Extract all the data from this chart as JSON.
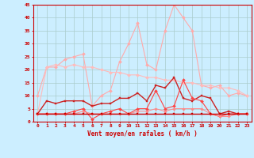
{
  "x": [
    0,
    1,
    2,
    3,
    4,
    5,
    6,
    7,
    8,
    9,
    10,
    11,
    12,
    13,
    14,
    15,
    16,
    17,
    18,
    19,
    20,
    21,
    22,
    23
  ],
  "series": [
    {
      "y": [
        10,
        21,
        21,
        24,
        25,
        26,
        6,
        10,
        12,
        23,
        30,
        38,
        22,
        20,
        35,
        45,
        40,
        35,
        14,
        13,
        14,
        10,
        11,
        10
      ],
      "color": "#ffaaaa",
      "marker": "D",
      "markersize": 2.0,
      "linewidth": 0.8
    },
    {
      "y": [
        3,
        21,
        22,
        21,
        22,
        21,
        21,
        20,
        19,
        19,
        18,
        18,
        17,
        17,
        16,
        16,
        15,
        15,
        14,
        14,
        13,
        13,
        12,
        10
      ],
      "color": "#ffbbbb",
      "marker": "D",
      "markersize": 2.0,
      "linewidth": 0.8
    },
    {
      "y": [
        3,
        8,
        7,
        8,
        8,
        8,
        6,
        7,
        7,
        9,
        9,
        11,
        8,
        14,
        13,
        17,
        9,
        8,
        10,
        9,
        3,
        4,
        3,
        3
      ],
      "color": "#cc2222",
      "marker": "s",
      "markersize": 2.0,
      "linewidth": 1.0
    },
    {
      "y": [
        3,
        3,
        3,
        3,
        4,
        5,
        1,
        3,
        4,
        5,
        3,
        5,
        5,
        12,
        5,
        6,
        16,
        9,
        8,
        3,
        2,
        3,
        3,
        3
      ],
      "color": "#ff4444",
      "marker": "D",
      "markersize": 2.0,
      "linewidth": 0.8
    },
    {
      "y": [
        3,
        3,
        3,
        3,
        3,
        4,
        3,
        3,
        3,
        3,
        3,
        4,
        4,
        5,
        4,
        5,
        5,
        5,
        5,
        3,
        2,
        2,
        3,
        3
      ],
      "color": "#ff8888",
      "marker": "D",
      "markersize": 1.8,
      "linewidth": 0.7
    },
    {
      "y": [
        3,
        3,
        3,
        3,
        3,
        3,
        3,
        3,
        3,
        3,
        3,
        3,
        3,
        3,
        3,
        3,
        3,
        3,
        3,
        3,
        3,
        3,
        3,
        3
      ],
      "color": "#cc0000",
      "marker": "s",
      "markersize": 2.0,
      "linewidth": 1.0
    }
  ],
  "xlabel": "Vent moyen/en rafales ( km/h )",
  "xlim": [
    -0.5,
    23.5
  ],
  "ylim": [
    0,
    45
  ],
  "yticks": [
    0,
    5,
    10,
    15,
    20,
    25,
    30,
    35,
    40,
    45
  ],
  "xticks": [
    0,
    1,
    2,
    3,
    4,
    5,
    6,
    7,
    8,
    9,
    10,
    11,
    12,
    13,
    14,
    15,
    16,
    17,
    18,
    19,
    20,
    21,
    22,
    23
  ],
  "background_color": "#cceeff",
  "grid_color": "#aacccc",
  "axis_color": "#cc0000",
  "label_color": "#cc0000",
  "tick_color": "#cc0000"
}
